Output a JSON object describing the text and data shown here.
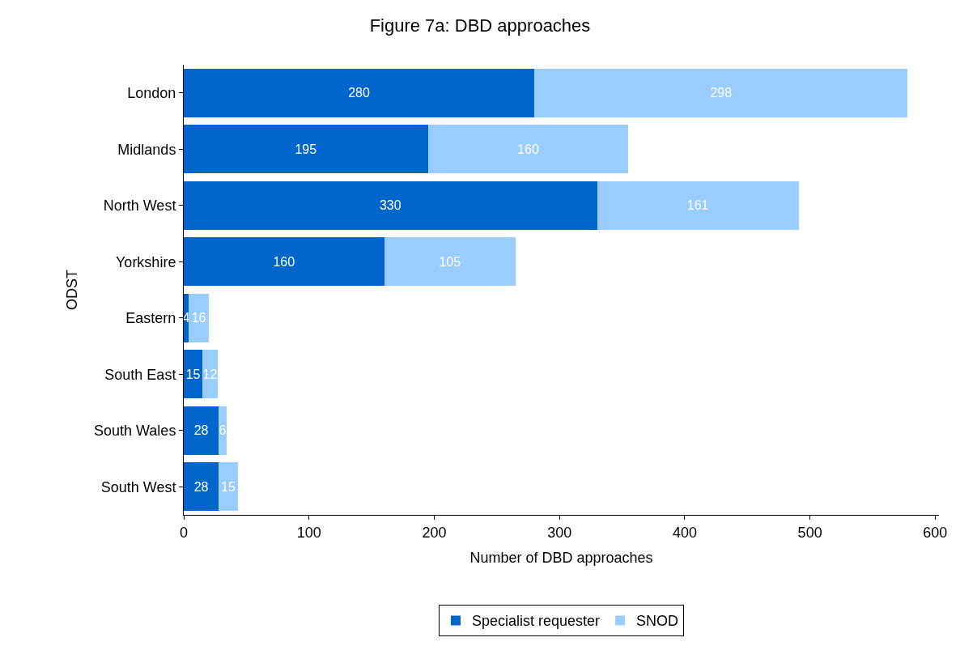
{
  "chart_data": {
    "type": "bar",
    "title": "Figure 7a: DBD approaches",
    "xlabel": "Number of DBD approaches",
    "ylabel": "ODST",
    "orientation": "horizontal",
    "stacked": true,
    "categories": [
      "London",
      "Midlands",
      "North West",
      "Yorkshire",
      "Eastern",
      "South East",
      "South Wales",
      "South West"
    ],
    "series": [
      {
        "name": "Specialist requester",
        "color": "#0066cc",
        "values": [
          280,
          195,
          330,
          160,
          4,
          15,
          28,
          28
        ]
      },
      {
        "name": "SNOD",
        "color": "#99ccff",
        "values": [
          298,
          160,
          161,
          105,
          16,
          12,
          6,
          15
        ]
      }
    ],
    "xlim": [
      0,
      603
    ],
    "xticks": [
      0,
      100,
      200,
      300,
      400,
      500,
      600
    ],
    "data_labels": true,
    "legend": "bottom"
  }
}
